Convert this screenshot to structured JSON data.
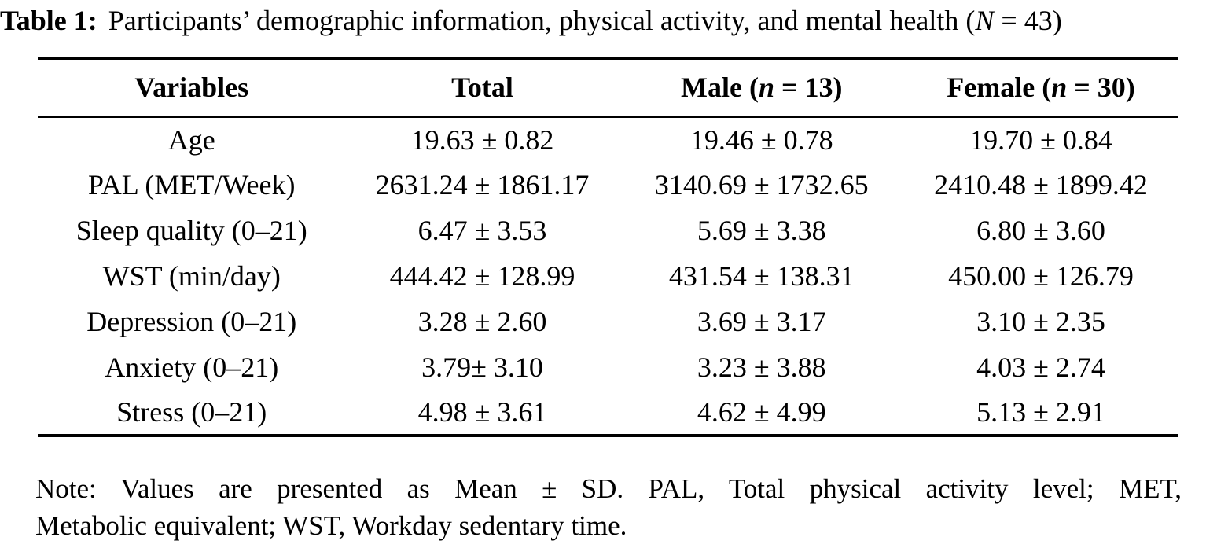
{
  "caption": {
    "label": "Table 1:",
    "text": "Participants’ demographic information, physical activity, and mental health (",
    "n_var": "N",
    "n_rest": " = 43)"
  },
  "table": {
    "columns": [
      {
        "label": "Variables",
        "prefix": "",
        "n": "",
        "suffix": ""
      },
      {
        "label": "Total",
        "prefix": "",
        "n": "",
        "suffix": ""
      },
      {
        "label": "",
        "prefix": "Male (",
        "n": "n",
        "suffix": " = 13)"
      },
      {
        "label": "",
        "prefix": "Female (",
        "n": "n",
        "suffix": " = 30)"
      }
    ],
    "rows": [
      {
        "variable": "Age",
        "total": "19.63 ± 0.82",
        "male": "19.46 ± 0.78",
        "female": "19.70 ± 0.84"
      },
      {
        "variable": "PAL (MET/Week)",
        "total": "2631.24 ± 1861.17",
        "male": "3140.69 ± 1732.65",
        "female": "2410.48 ± 1899.42"
      },
      {
        "variable": "Sleep quality (0–21)",
        "total": "6.47 ± 3.53",
        "male": "5.69 ± 3.38",
        "female": "6.80 ± 3.60"
      },
      {
        "variable": "WST (min/day)",
        "total": "444.42 ± 128.99",
        "male": "431.54 ± 138.31",
        "female": "450.00 ± 126.79"
      },
      {
        "variable": "Depression (0–21)",
        "total": "3.28 ± 2.60",
        "male": "3.69 ± 3.17",
        "female": "3.10 ± 2.35"
      },
      {
        "variable": "Anxiety (0–21)",
        "total": "3.79± 3.10",
        "male": "3.23 ± 3.88",
        "female": "4.03 ± 2.74"
      },
      {
        "variable": "Stress (0–21)",
        "total": "4.98 ± 3.61",
        "male": "4.62 ± 4.99",
        "female": "5.13 ± 2.91"
      }
    ]
  },
  "note": {
    "line1": "Note: Values are presented as Mean ± SD. PAL, Total physical activity level; MET,",
    "line2": "Metabolic equivalent; WST, Workday sedentary time."
  },
  "colors": {
    "text": "#000000",
    "background": "#ffffff",
    "rule": "#000000"
  }
}
